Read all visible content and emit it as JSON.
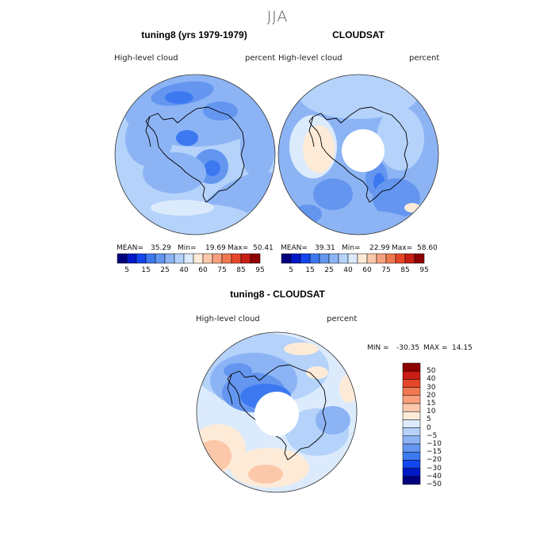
{
  "title": "JJA",
  "colors": {
    "abs_scale": [
      "#00007f",
      "#0019c8",
      "#1446f0",
      "#3c78f0",
      "#6496f0",
      "#8cb4f5",
      "#b4d2fa",
      "#dcebfc",
      "#fdebd8",
      "#fcc8aa",
      "#f8a07e",
      "#f07850",
      "#e64628",
      "#c81e14",
      "#8c0000"
    ],
    "diff_scale": [
      "#00007f",
      "#0019c8",
      "#1446f0",
      "#3c78f0",
      "#6496f0",
      "#8cb4f5",
      "#b4d2fa",
      "#dcebfc",
      "#fdebd8",
      "#fcc8aa",
      "#f8a07e",
      "#f07850",
      "#e64628",
      "#c81e14",
      "#8c0000"
    ],
    "coast": "#000000",
    "map_border": "#333333"
  },
  "chart_data": [
    {
      "type": "heatmap",
      "title": "tuning8 (yrs 1979-1979)",
      "variable": "High-level cloud",
      "units": "percent",
      "stats": {
        "mean_label": "MEAN=",
        "mean": "35.29",
        "min_label": "Min=",
        "min": "19.69",
        "max_label": "Max=",
        "max": "50.41"
      },
      "colorbar_ticks": [
        "5",
        "15",
        "25",
        "40",
        "60",
        "75",
        "85",
        "95"
      ]
    },
    {
      "type": "heatmap",
      "title": "CLOUDSAT",
      "variable": "High-level cloud",
      "units": "percent",
      "stats": {
        "mean_label": "MEAN=",
        "mean": "39.31",
        "min_label": "Min=",
        "min": "22.99",
        "max_label": "Max=",
        "max": "58.60"
      },
      "colorbar_ticks": [
        "5",
        "15",
        "25",
        "40",
        "60",
        "75",
        "85",
        "95"
      ]
    },
    {
      "type": "heatmap",
      "title": "tuning8 - CLOUDSAT",
      "variable": "High-level cloud",
      "units": "percent",
      "stats": {
        "min_label": "MIN =",
        "min": "-30.35",
        "max_label": "MAX =",
        "max": "14.15"
      },
      "colorbar_ticks": [
        "50",
        "40",
        "30",
        "20",
        "15",
        "10",
        "5",
        "0",
        "−5",
        "−10",
        "−15",
        "−20",
        "−30",
        "−40",
        "−50"
      ]
    }
  ]
}
